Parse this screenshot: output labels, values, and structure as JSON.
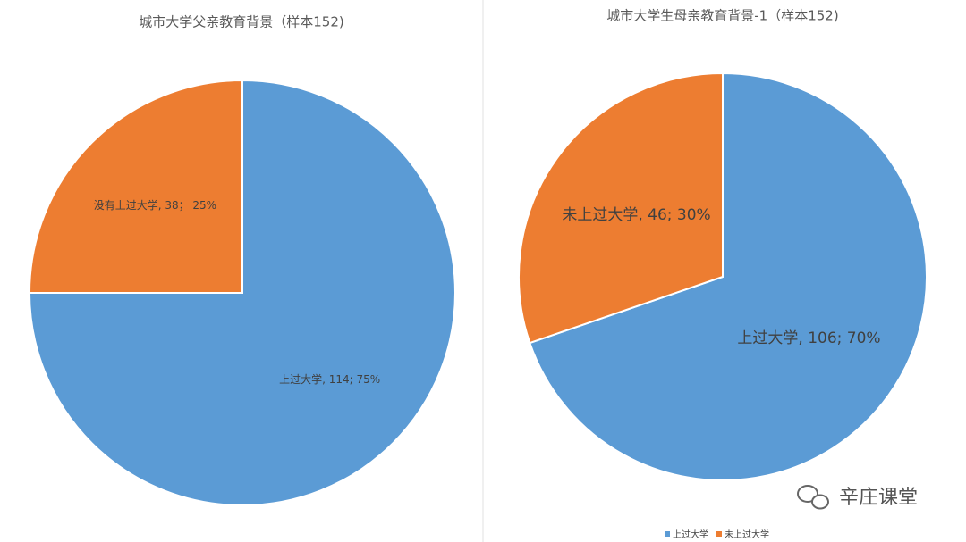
{
  "chart_data": [
    {
      "type": "pie",
      "title": "城市大学父亲教育背景（样本152)",
      "categories": [
        "上过大学",
        "没有上过大学"
      ],
      "values": [
        114,
        38
      ],
      "value_labels": [
        "上过大学, 114; 75%",
        "没有上过大学, 38； 25%"
      ],
      "colors": [
        "#5b9bd5",
        "#ed7d31"
      ]
    },
    {
      "type": "pie",
      "title": "城市大学生母亲教育背景-1（样本152)",
      "categories": [
        "上过大学",
        "未上过大学"
      ],
      "values": [
        106,
        46
      ],
      "value_labels": [
        "上过大学, 106; 70%",
        "未上过大学, 46; 30%"
      ],
      "colors": [
        "#5b9bd5",
        "#ed7d31"
      ],
      "legend": "bottom"
    }
  ],
  "watermark": "辛庄课堂"
}
